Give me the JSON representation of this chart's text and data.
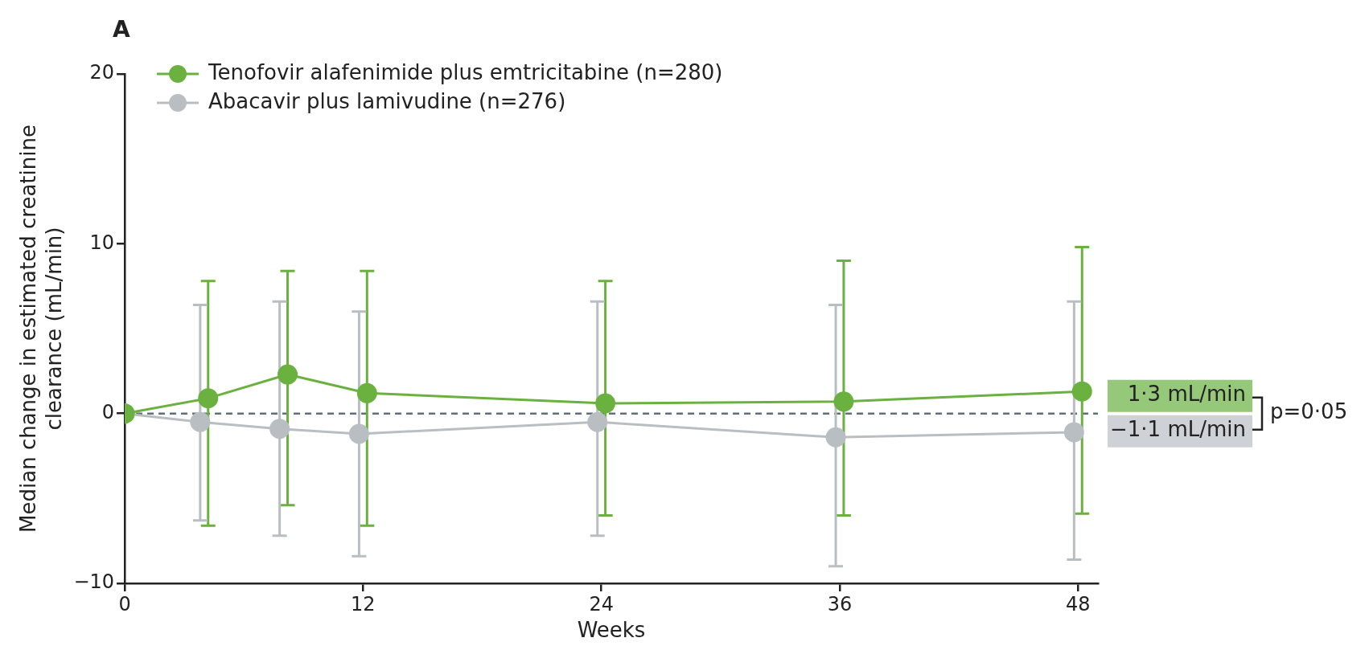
{
  "chart_data": {
    "type": "line",
    "title": "A",
    "xlabel": "Weeks",
    "ylabel": "Median change in estimated creatinine clearance (mL/min)",
    "xlim": [
      0,
      49
    ],
    "xticks": [
      0,
      12,
      24,
      36,
      48
    ],
    "ylim": [
      -10,
      20
    ],
    "yticks": [
      -10,
      0,
      10,
      20
    ],
    "grid": false,
    "legend": "top left",
    "marker": "circle",
    "line_style": "solid",
    "series": [
      {
        "name": "Tenofovir alafenimide plus emtricitabine (n=280)",
        "color": "#6ab140",
        "x": [
          0,
          4.2,
          8.2,
          12.2,
          24.2,
          36.2,
          48.2
        ],
        "values": [
          0,
          0.9,
          2.3,
          1.2,
          0.6,
          0.7,
          1.3
        ],
        "errors": [
          null,
          [
            -6.6,
            7.8
          ],
          [
            -5.4,
            8.4
          ],
          [
            -6.6,
            8.4
          ],
          [
            -6.0,
            7.8
          ],
          [
            -6.0,
            9.0
          ],
          [
            -5.9,
            9.8
          ]
        ]
      },
      {
        "name": "Abacavir plus lamivudine (n=276)",
        "color": "#b9bec3",
        "x": [
          0,
          3.8,
          7.8,
          11.8,
          23.8,
          35.8,
          47.8
        ],
        "values": [
          0,
          -0.5,
          -0.9,
          -1.2,
          -0.5,
          -1.4,
          -1.1
        ],
        "errors": [
          null,
          [
            -6.3,
            6.4
          ],
          [
            -7.2,
            6.6
          ],
          [
            -8.4,
            6.0
          ],
          [
            -7.2,
            6.6
          ],
          [
            -9.0,
            6.4
          ],
          [
            -8.6,
            6.6
          ]
        ]
      }
    ],
    "ref_lines": [
      {
        "axis": "y",
        "value": 0,
        "color": "#5d707c",
        "line_style": "dashed"
      }
    ],
    "annotations": [
      "1·3 mL/min",
      "−1·1 mL/min",
      "p=0·05"
    ]
  }
}
